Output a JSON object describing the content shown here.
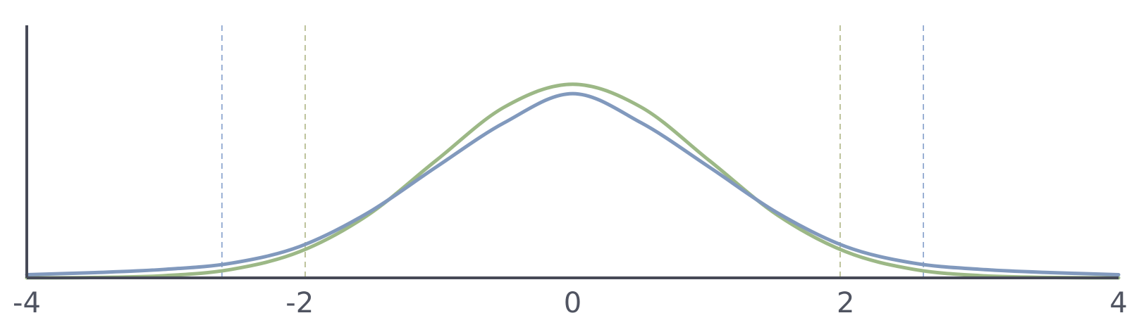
{
  "chart_data": {
    "type": "line",
    "title": "",
    "xlabel": "",
    "ylabel": "",
    "xlim": [
      -4,
      4
    ],
    "ylim": [
      0,
      0.45
    ],
    "x_ticks": [
      {
        "value": -4,
        "label": "-4"
      },
      {
        "value": -2,
        "label": "-2"
      },
      {
        "value": 0,
        "label": "0"
      },
      {
        "value": 2,
        "label": "2"
      },
      {
        "value": 4,
        "label": "4"
      }
    ],
    "grid": false,
    "legend": "none",
    "series": [
      {
        "key": "green",
        "color": "#9cb886",
        "x": [
          -4.0,
          -3.5,
          -3.0,
          -2.5,
          -2.0,
          -1.5,
          -1.0,
          -0.5,
          0.0,
          0.5,
          1.0,
          1.5,
          2.0,
          2.5,
          3.0,
          3.5,
          4.0
        ],
        "y": [
          0.0001,
          0.0009,
          0.0044,
          0.0175,
          0.054,
          0.1295,
          0.242,
          0.352,
          0.399,
          0.352,
          0.242,
          0.1295,
          0.054,
          0.0175,
          0.0044,
          0.0009,
          0.0001
        ]
      },
      {
        "key": "blue",
        "color": "#8199bd",
        "x": [
          -4.0,
          -3.5,
          -3.0,
          -2.5,
          -2.0,
          -1.5,
          -1.0,
          -0.5,
          0.0,
          0.5,
          1.0,
          1.5,
          2.0,
          2.5,
          3.0,
          3.5,
          4.0
        ],
        "y": [
          0.0066,
          0.0109,
          0.0173,
          0.0303,
          0.0646,
          0.134,
          0.2284,
          0.3198,
          0.3796,
          0.3198,
          0.2284,
          0.134,
          0.0646,
          0.0303,
          0.0173,
          0.0109,
          0.0066
        ]
      }
    ],
    "reference_lines": [
      {
        "x": -1.96,
        "color": "#b7bd92"
      },
      {
        "x": 1.96,
        "color": "#b7bd92"
      },
      {
        "x": -2.57,
        "color": "#8fa8d0"
      },
      {
        "x": 2.57,
        "color": "#8fa8d0"
      }
    ],
    "axis_color": "#474a57"
  }
}
